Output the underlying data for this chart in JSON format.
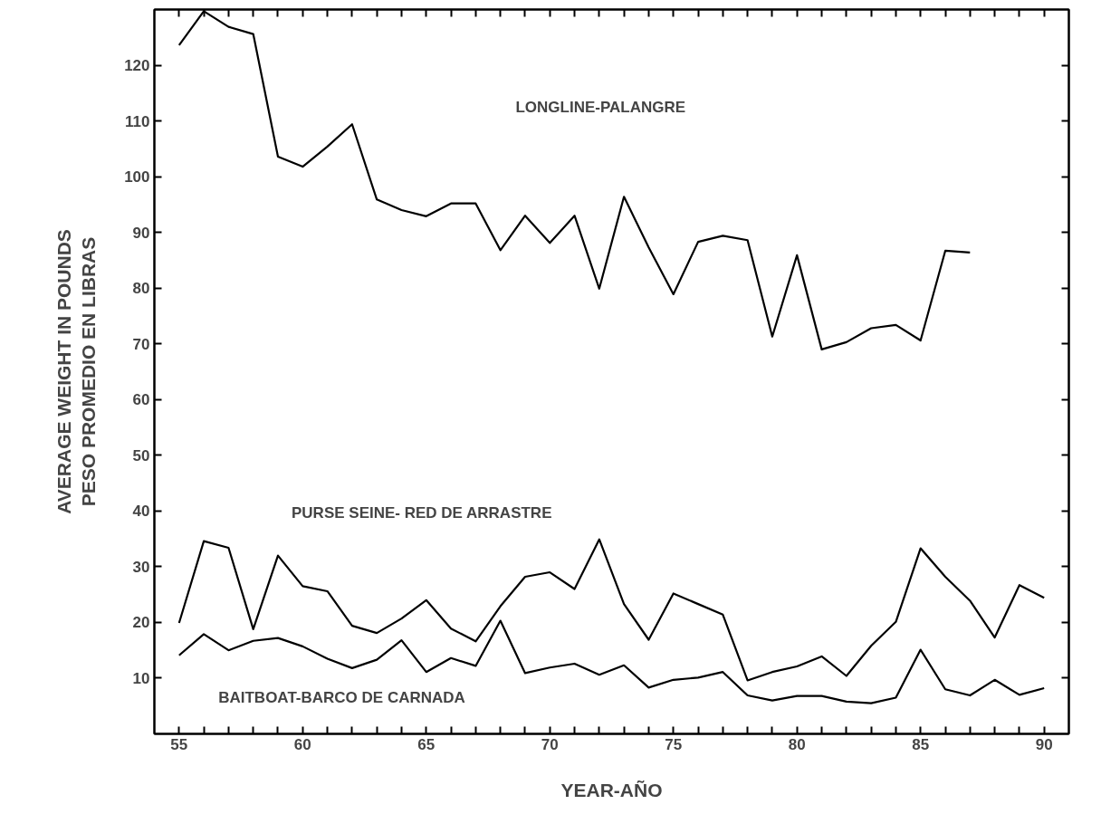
{
  "chart_data": {
    "type": "line",
    "xlabel": "YEAR-AÑO",
    "ylabel": "AVERAGE WEIGHT IN POUNDS\nPESO PROMEDIO EN LIBRAS",
    "xlim": [
      54,
      91
    ],
    "ylim": [
      0,
      130
    ],
    "xticks": [
      55,
      {
        "value": 56,
        "label": null
      },
      {
        "value": 57,
        "label": null
      },
      {
        "value": 58,
        "label": null
      },
      {
        "value": 59,
        "label": null
      },
      60,
      {
        "value": 61,
        "label": null
      },
      {
        "value": 62,
        "label": null
      },
      {
        "value": 63,
        "label": null
      },
      {
        "value": 64,
        "label": null
      },
      65,
      {
        "value": 66,
        "label": null
      },
      {
        "value": 67,
        "label": null
      },
      {
        "value": 68,
        "label": null
      },
      {
        "value": 69,
        "label": null
      },
      70,
      {
        "value": 71,
        "label": null
      },
      {
        "value": 72,
        "label": null
      },
      {
        "value": 73,
        "label": null
      },
      {
        "value": 74,
        "label": null
      },
      75,
      {
        "value": 76,
        "label": null
      },
      {
        "value": 77,
        "label": null
      },
      {
        "value": 78,
        "label": null
      },
      {
        "value": 79,
        "label": null
      },
      80,
      {
        "value": 81,
        "label": null
      },
      {
        "value": 82,
        "label": null
      },
      {
        "value": 83,
        "label": null
      },
      {
        "value": 84,
        "label": null
      },
      85,
      {
        "value": 86,
        "label": null
      },
      {
        "value": 87,
        "label": null
      },
      {
        "value": 88,
        "label": null
      },
      {
        "value": 89,
        "label": null
      },
      90
    ],
    "yticks": [
      10,
      20,
      30,
      40,
      50,
      60,
      70,
      80,
      90,
      100,
      110,
      120
    ],
    "grid": false,
    "marker": "none",
    "line_style": "solid",
    "series": [
      {
        "color": "#000000",
        "x": [
          55,
          56,
          57,
          58,
          59,
          60,
          61,
          62,
          63,
          64,
          65,
          66,
          67,
          68,
          69,
          70,
          71,
          72,
          73,
          74,
          75,
          76,
          77,
          78,
          79,
          80,
          81,
          82,
          83,
          84,
          85,
          86,
          87
        ],
        "values": [
          123.6,
          129.7,
          126.9,
          125.6,
          103.6,
          101.8,
          105.4,
          109.4,
          95.9,
          94.0,
          92.9,
          95.2,
          95.2,
          86.8,
          93.0,
          88.1,
          93.0,
          79.9,
          96.4,
          87.3,
          78.9,
          88.3,
          89.4,
          88.6,
          71.3,
          85.9,
          69.0,
          70.3,
          72.8,
          73.4,
          70.6,
          86.7,
          86.4
        ]
      },
      {
        "color": "#000000",
        "x": [
          55,
          56,
          57,
          58,
          59,
          60,
          61,
          62,
          63,
          64,
          65,
          66,
          67,
          68,
          69,
          70,
          71,
          72,
          73,
          74,
          75,
          76,
          77,
          78,
          79,
          80,
          81,
          82,
          83,
          84,
          85,
          86,
          87,
          88,
          89,
          90
        ],
        "values": [
          19.9,
          34.6,
          33.4,
          18.8,
          32.0,
          26.5,
          25.6,
          19.4,
          18.1,
          20.7,
          24.0,
          18.9,
          16.6,
          22.9,
          28.2,
          29.0,
          26.0,
          34.9,
          23.3,
          16.9,
          25.2,
          23.3,
          21.4,
          9.6,
          11.1,
          12.1,
          13.9,
          10.4,
          15.8,
          20.1,
          33.3,
          28.2,
          23.9,
          17.3,
          26.7,
          24.4
        ]
      },
      {
        "color": "#000000",
        "x": [
          55,
          56,
          57,
          58,
          59,
          60,
          61,
          62,
          63,
          64,
          65,
          66,
          67,
          68,
          69,
          70,
          71,
          72,
          73,
          74,
          75,
          76,
          77,
          78,
          79,
          80,
          81,
          82,
          83,
          84,
          85,
          86,
          87,
          88,
          89,
          90
        ],
        "values": [
          14.1,
          17.9,
          15.0,
          16.7,
          17.2,
          15.7,
          13.5,
          11.8,
          13.3,
          16.8,
          11.1,
          13.6,
          12.2,
          20.3,
          10.9,
          11.9,
          12.6,
          10.6,
          12.3,
          8.3,
          9.7,
          10.1,
          11.1,
          6.9,
          6.0,
          6.8,
          6.8,
          5.8,
          5.5,
          6.5,
          15.1,
          8.0,
          6.9,
          9.7,
          7.0,
          8.2
        ]
      }
    ],
    "annotations": [
      "LONGLINE-PALANGRE",
      "PURSE SEINE- RED DE ARRASTRE",
      "BAITBOAT-BARCO DE CARNADA"
    ]
  }
}
